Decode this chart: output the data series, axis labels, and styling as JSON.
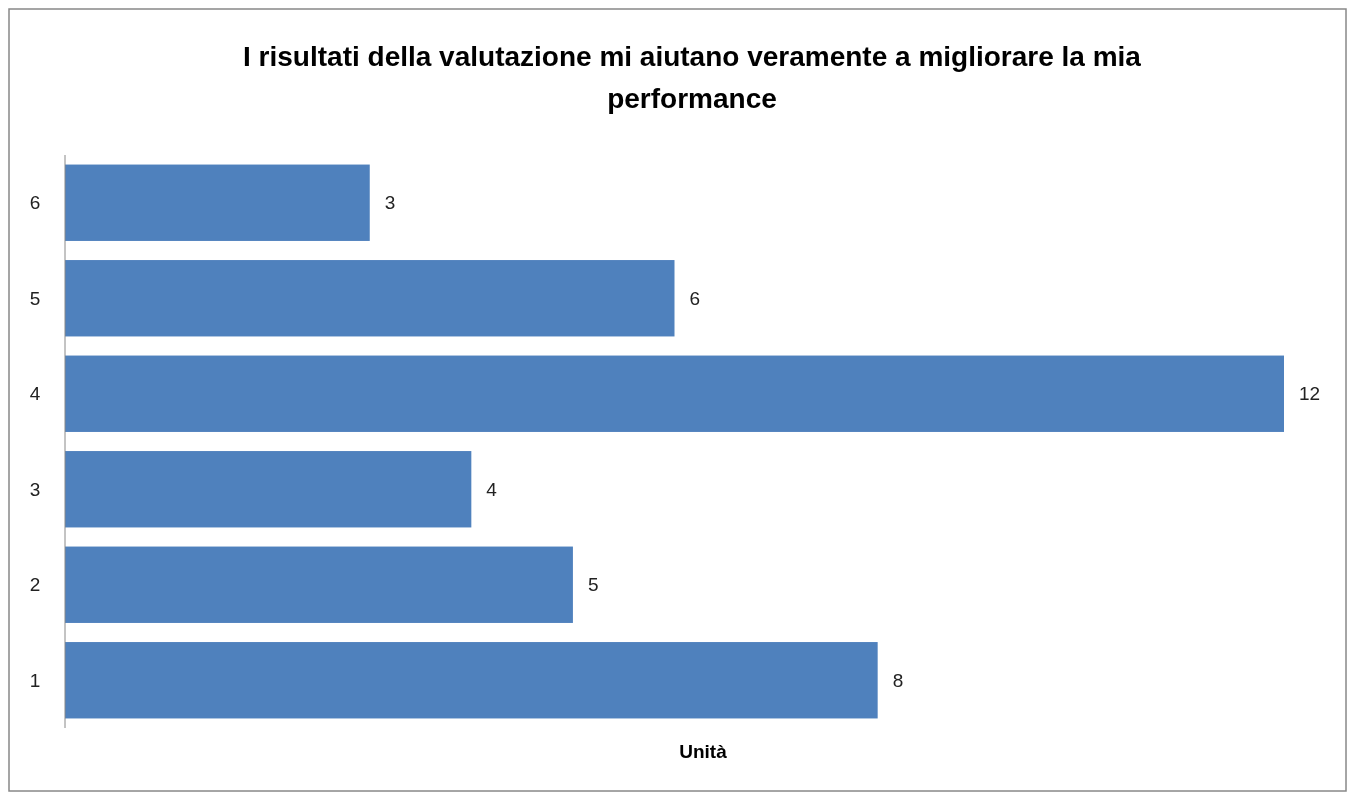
{
  "chart_data": {
    "type": "bar",
    "orientation": "horizontal",
    "title": "I risultati della valutazione mi aiutano veramente a migliorare la mia performance",
    "xlabel": "Unità",
    "categories": [
      "6",
      "5",
      "4",
      "3",
      "2",
      "1"
    ],
    "values": [
      3,
      6,
      12,
      4,
      5,
      8
    ],
    "color": "#4f81bd",
    "data_labels": true
  }
}
